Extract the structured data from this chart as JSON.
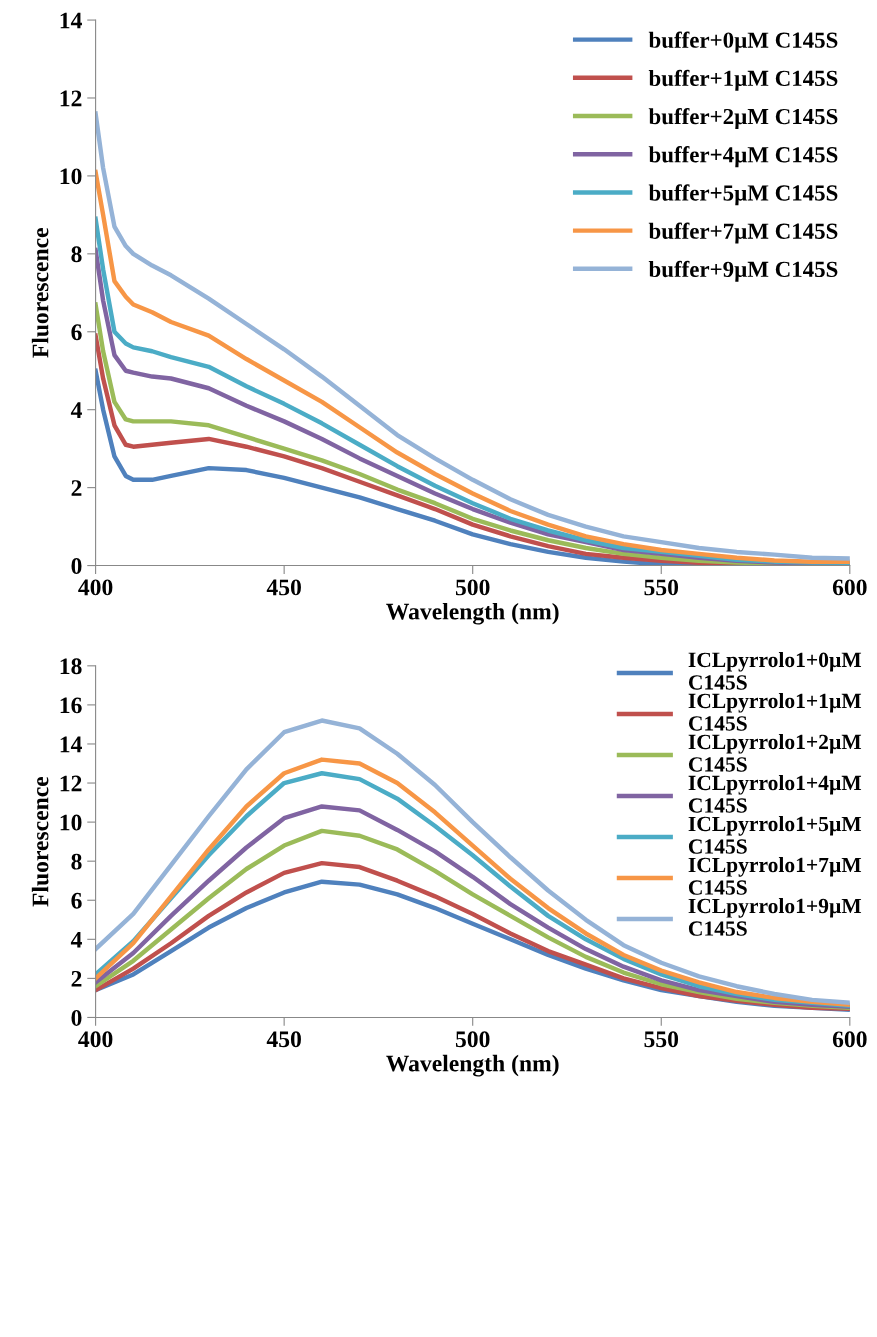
{
  "chart_data": [
    {
      "type": "line",
      "xlabel": "Wavelength (nm)",
      "ylabel": "Fluorescence",
      "xlim": [
        400,
        600
      ],
      "xticks": [
        400,
        450,
        500,
        550,
        600
      ],
      "ylim": [
        0,
        14
      ],
      "yticks": [
        0,
        2,
        4,
        6,
        8,
        10,
        12,
        14
      ],
      "grid": false,
      "legend": "top right",
      "marker": "none",
      "line_style": "solid",
      "x": [
        400,
        402,
        405,
        408,
        410,
        415,
        420,
        430,
        440,
        450,
        460,
        470,
        480,
        490,
        500,
        510,
        520,
        530,
        540,
        550,
        560,
        570,
        580,
        590,
        600
      ],
      "series": [
        {
          "name": "buffer+0µM C145S",
          "color": "#4f81bd",
          "values": [
            5.0,
            4.0,
            2.8,
            2.3,
            2.2,
            2.2,
            2.3,
            2.5,
            2.45,
            2.25,
            2.0,
            1.75,
            1.45,
            1.15,
            0.8,
            0.55,
            0.35,
            0.2,
            0.1,
            0.03,
            0.0,
            0.0,
            0.0,
            0.0,
            0.0
          ]
        },
        {
          "name": "buffer+1µM C145S",
          "color": "#c0504d",
          "values": [
            5.9,
            4.8,
            3.6,
            3.1,
            3.05,
            3.1,
            3.15,
            3.25,
            3.05,
            2.8,
            2.5,
            2.15,
            1.8,
            1.45,
            1.05,
            0.75,
            0.5,
            0.3,
            0.2,
            0.12,
            0.07,
            0.04,
            0.03,
            0.02,
            0.02
          ]
        },
        {
          "name": "buffer+2µM C145S",
          "color": "#9bbb59",
          "values": [
            6.7,
            5.5,
            4.2,
            3.75,
            3.7,
            3.7,
            3.7,
            3.6,
            3.3,
            3.0,
            2.7,
            2.35,
            1.95,
            1.6,
            1.2,
            0.9,
            0.65,
            0.45,
            0.3,
            0.2,
            0.12,
            0.08,
            0.05,
            0.04,
            0.03
          ]
        },
        {
          "name": "buffer+4µM C145S",
          "color": "#8064a2",
          "values": [
            8.1,
            6.8,
            5.4,
            5.0,
            4.95,
            4.85,
            4.8,
            4.55,
            4.1,
            3.7,
            3.25,
            2.75,
            2.3,
            1.85,
            1.45,
            1.1,
            0.8,
            0.6,
            0.4,
            0.3,
            0.2,
            0.12,
            0.08,
            0.05,
            0.05
          ]
        },
        {
          "name": "buffer+5µM C145S",
          "color": "#4bacc6",
          "values": [
            8.9,
            7.6,
            6.0,
            5.7,
            5.6,
            5.5,
            5.35,
            5.1,
            4.6,
            4.15,
            3.65,
            3.1,
            2.55,
            2.05,
            1.6,
            1.2,
            0.9,
            0.65,
            0.45,
            0.35,
            0.25,
            0.15,
            0.1,
            0.08,
            0.07
          ]
        },
        {
          "name": "buffer+7µM C145S",
          "color": "#f79646",
          "values": [
            10.1,
            9.0,
            7.3,
            6.9,
            6.7,
            6.5,
            6.25,
            5.9,
            5.3,
            4.75,
            4.2,
            3.55,
            2.9,
            2.35,
            1.85,
            1.4,
            1.05,
            0.75,
            0.55,
            0.4,
            0.3,
            0.2,
            0.13,
            0.1,
            0.1
          ]
        },
        {
          "name": "buffer+9µM C145S",
          "color": "#95b3d7",
          "values": [
            11.6,
            10.2,
            8.7,
            8.2,
            8.0,
            7.7,
            7.45,
            6.85,
            6.2,
            5.55,
            4.85,
            4.1,
            3.35,
            2.75,
            2.2,
            1.7,
            1.3,
            1.0,
            0.75,
            0.6,
            0.45,
            0.35,
            0.28,
            0.2,
            0.18
          ]
        }
      ]
    },
    {
      "type": "line",
      "xlabel": "Wavelength (nm)",
      "ylabel": "Fluorescence",
      "xlim": [
        400,
        600
      ],
      "xticks": [
        400,
        450,
        500,
        550,
        600
      ],
      "ylim": [
        0,
        18
      ],
      "yticks": [
        0,
        2,
        4,
        6,
        8,
        10,
        12,
        14,
        16,
        18
      ],
      "grid": false,
      "legend": "top right",
      "marker": "none",
      "line_style": "solid",
      "x": [
        400,
        410,
        420,
        430,
        440,
        450,
        460,
        470,
        480,
        490,
        500,
        510,
        520,
        530,
        540,
        550,
        560,
        570,
        580,
        590,
        600
      ],
      "series": [
        {
          "name": "ICLpyrrolo1+0µM C145S",
          "color": "#4f81bd",
          "values": [
            1.4,
            2.2,
            3.4,
            4.6,
            5.6,
            6.4,
            6.95,
            6.8,
            6.3,
            5.6,
            4.8,
            4.0,
            3.2,
            2.5,
            1.9,
            1.4,
            1.1,
            0.8,
            0.6,
            0.5,
            0.4
          ]
        },
        {
          "name": "ICLpyrrolo1+1µM C145S",
          "color": "#c0504d",
          "values": [
            1.4,
            2.5,
            3.8,
            5.2,
            6.4,
            7.4,
            7.9,
            7.7,
            7.0,
            6.2,
            5.3,
            4.3,
            3.4,
            2.7,
            2.0,
            1.5,
            1.1,
            0.85,
            0.65,
            0.5,
            0.45
          ]
        },
        {
          "name": "ICLpyrrolo1+2µM C145S",
          "color": "#9bbb59",
          "values": [
            1.6,
            2.9,
            4.5,
            6.1,
            7.6,
            8.8,
            9.55,
            9.3,
            8.6,
            7.5,
            6.3,
            5.2,
            4.1,
            3.1,
            2.3,
            1.7,
            1.3,
            0.95,
            0.75,
            0.6,
            0.5
          ]
        },
        {
          "name": "ICLpyrrolo1+4µM C145S",
          "color": "#8064a2",
          "values": [
            1.8,
            3.3,
            5.2,
            7.0,
            8.7,
            10.2,
            10.8,
            10.6,
            9.6,
            8.5,
            7.2,
            5.8,
            4.6,
            3.5,
            2.6,
            1.9,
            1.4,
            1.1,
            0.8,
            0.65,
            0.55
          ]
        },
        {
          "name": "ICLpyrrolo1+5µM C145S",
          "color": "#4bacc6",
          "values": [
            2.2,
            3.9,
            6.1,
            8.3,
            10.3,
            12.0,
            12.5,
            12.2,
            11.2,
            9.8,
            8.3,
            6.7,
            5.2,
            4.0,
            3.0,
            2.2,
            1.6,
            1.2,
            0.9,
            0.75,
            0.6
          ]
        },
        {
          "name": "ICLpyrrolo1+7µM C145S",
          "color": "#f79646",
          "values": [
            2.0,
            3.8,
            6.2,
            8.6,
            10.8,
            12.5,
            13.2,
            13.0,
            12.0,
            10.5,
            8.8,
            7.1,
            5.6,
            4.3,
            3.2,
            2.4,
            1.8,
            1.3,
            1.0,
            0.8,
            0.65
          ]
        },
        {
          "name": "ICLpyrrolo1+9µM C145S",
          "color": "#95b3d7",
          "values": [
            3.5,
            5.3,
            7.8,
            10.3,
            12.7,
            14.6,
            15.2,
            14.8,
            13.5,
            11.9,
            10.0,
            8.2,
            6.5,
            5.0,
            3.7,
            2.8,
            2.1,
            1.6,
            1.2,
            0.9,
            0.75
          ]
        }
      ]
    }
  ]
}
